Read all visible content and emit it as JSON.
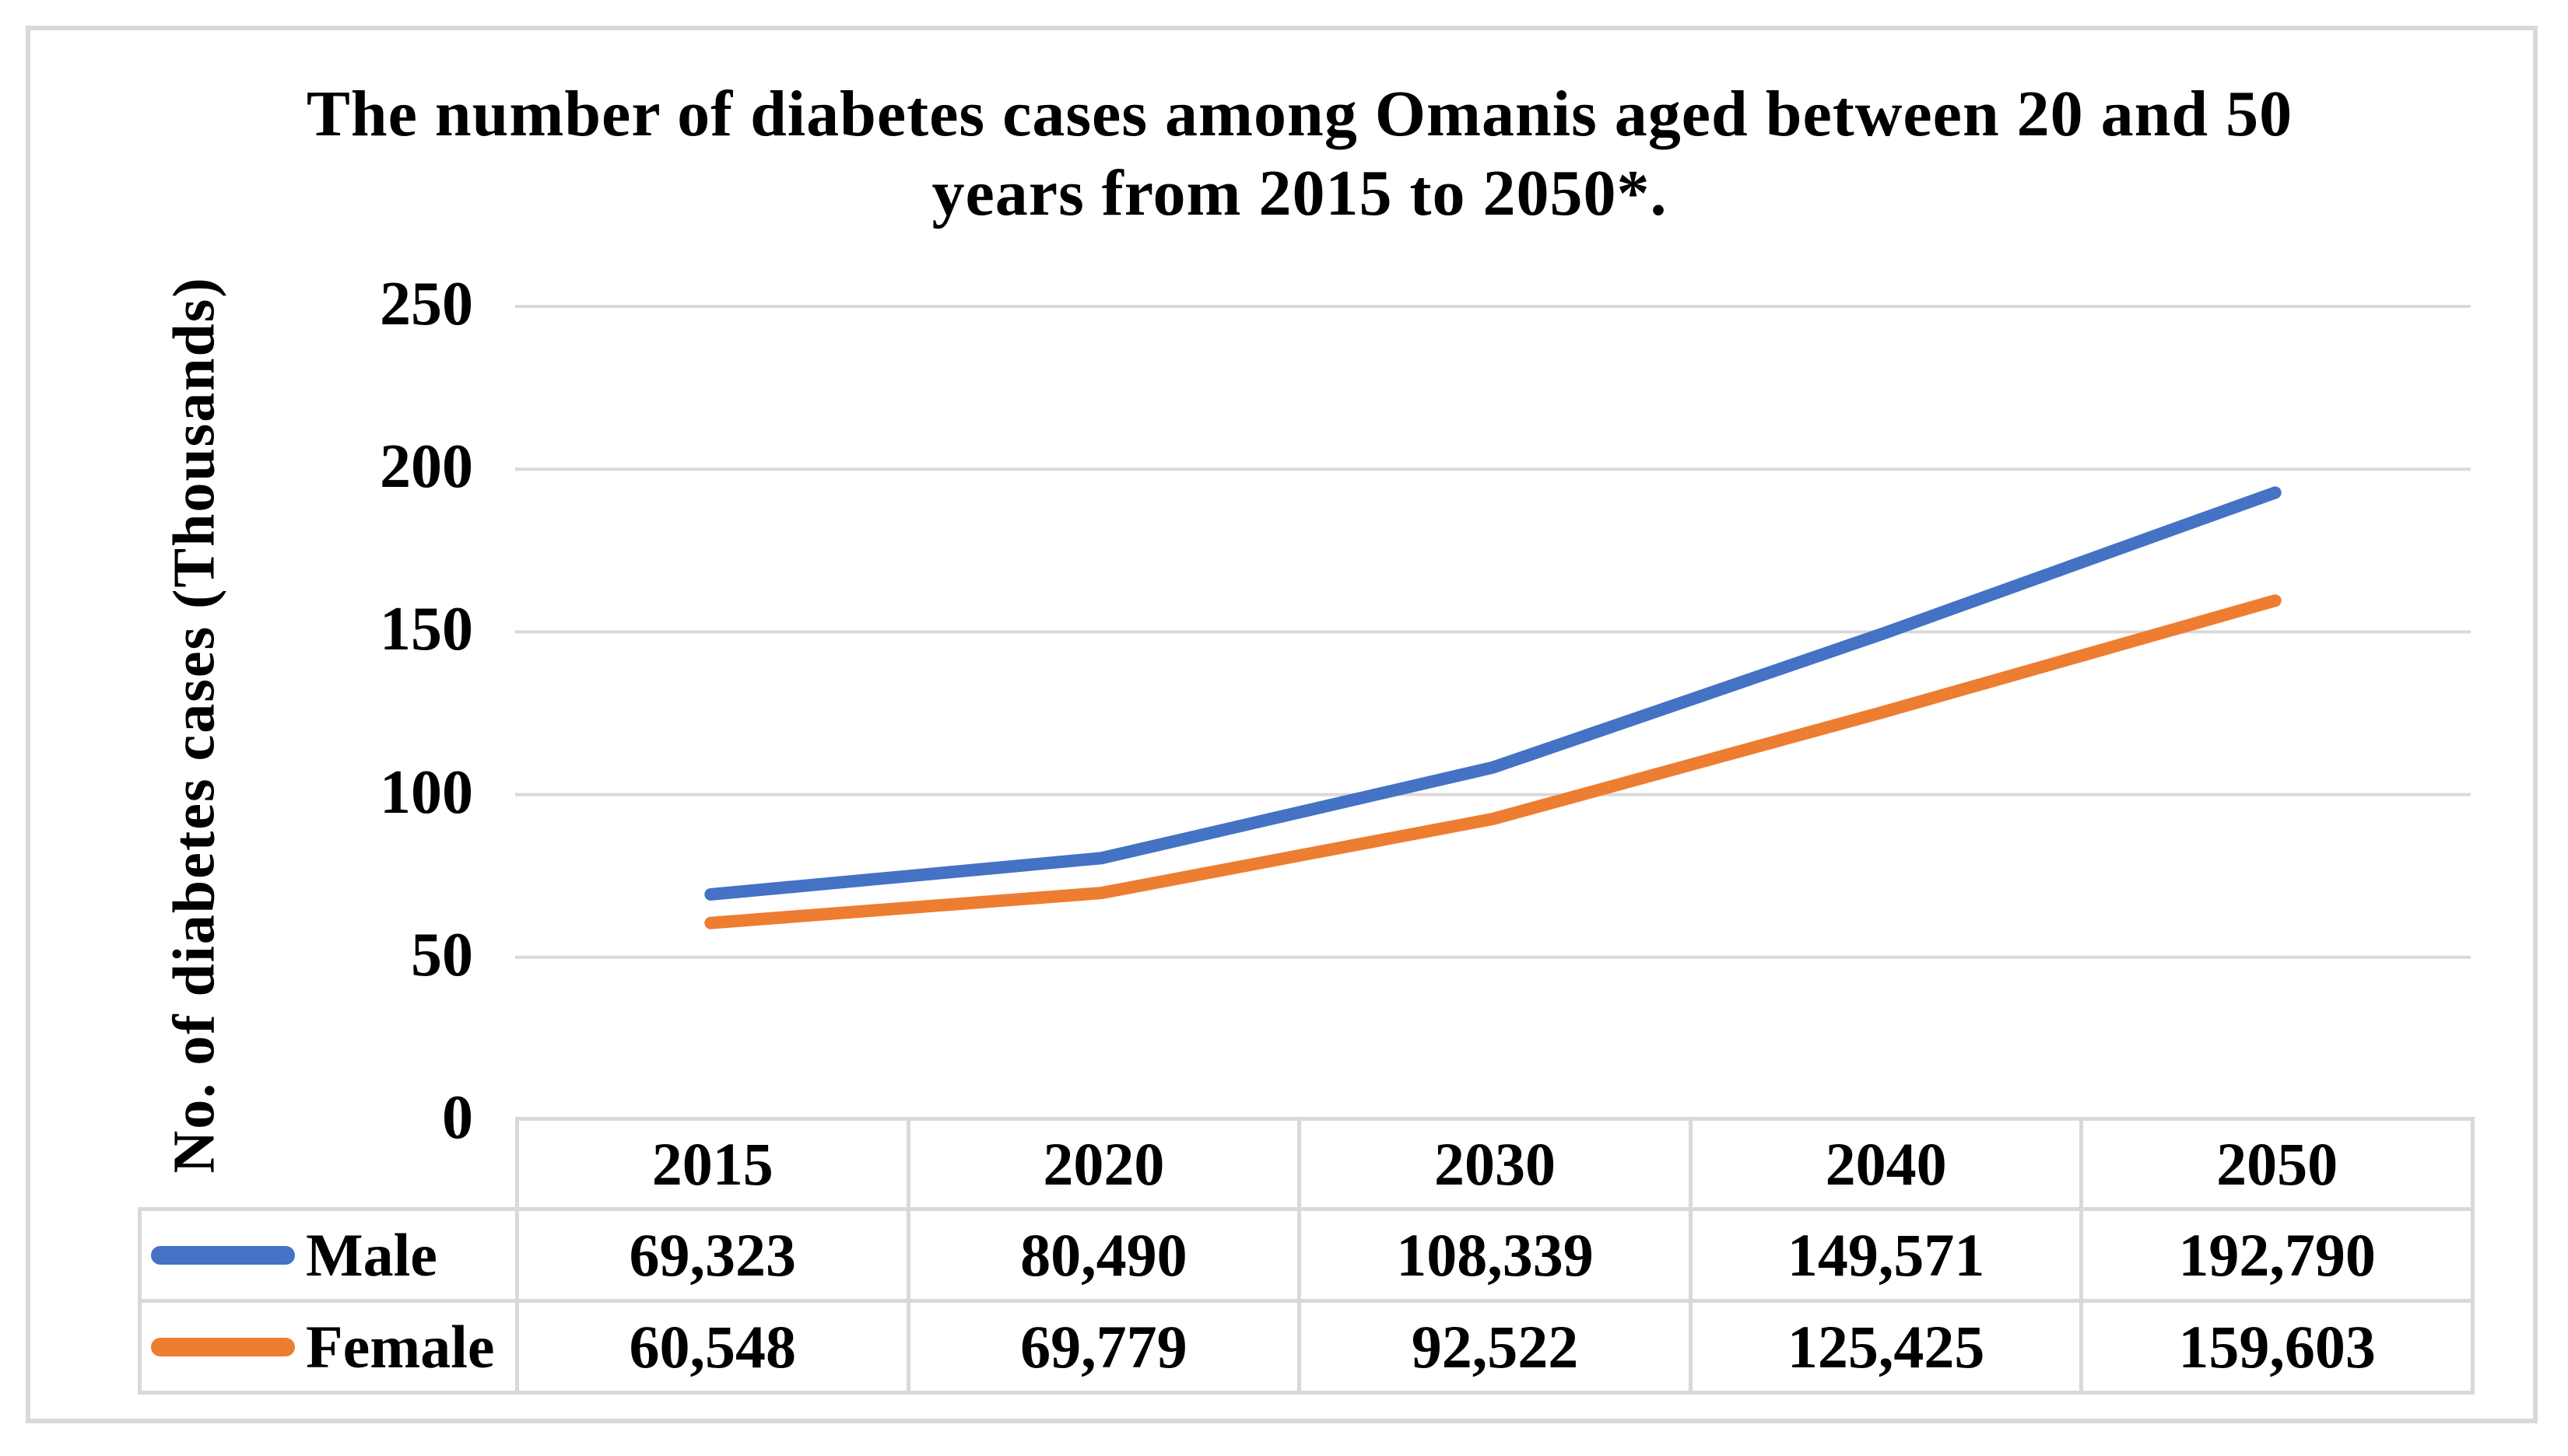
{
  "chart_data": {
    "type": "line",
    "title": "The number  of diabetes cases among Omanis  aged between 20 and 50 years from 2015 to 2050*.",
    "ylabel": "No. of diabetes cases (Thousands)",
    "xlabel": "",
    "categories": [
      "2015",
      "2020",
      "2030",
      "2040",
      "2050"
    ],
    "series": [
      {
        "name": "Male",
        "color": "#4472C4",
        "values": [
          69323,
          80490,
          108339,
          149571,
          192790
        ],
        "labels": [
          "69,323",
          "80,490",
          "108,339",
          "149,571",
          "192,790"
        ]
      },
      {
        "name": "Female",
        "color": "#ED7D31",
        "values": [
          60548,
          69779,
          92522,
          125425,
          159603
        ],
        "labels": [
          "60,548",
          "69,779",
          "92,522",
          "125,425",
          "159,603"
        ]
      }
    ],
    "yticks": [
      250,
      200,
      150,
      100,
      50,
      0
    ],
    "ylim": [
      0,
      250
    ],
    "y_unit": "Thousands",
    "grid": true,
    "legend_position": "table-row-headers",
    "colors": {
      "gridline": "#D9D9D9",
      "table_border": "#D9D9D9",
      "figure_border": "#D9D9D9",
      "text": "#000000",
      "background": "#FFFFFF"
    }
  }
}
